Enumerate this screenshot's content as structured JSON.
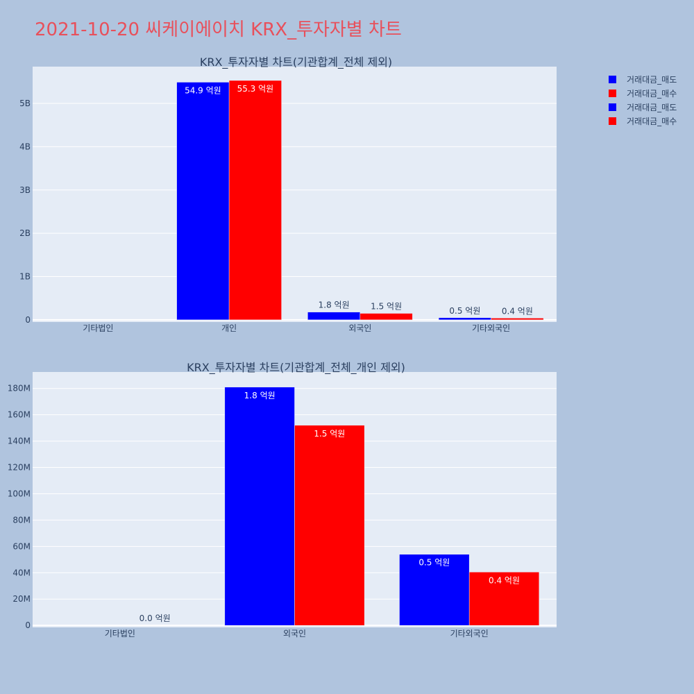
{
  "title": "2021-10-20 씨케이에이치 KRX_투자자별 차트",
  "legend": [
    {
      "name": "거래대금_매도",
      "color": "#0000ff"
    },
    {
      "name": "거래대금_매수",
      "color": "#ff0000"
    },
    {
      "name": "거래대금_매도",
      "color": "#0000ff"
    },
    {
      "name": "거래대금_매수",
      "color": "#ff0000"
    }
  ],
  "chart_data": [
    {
      "type": "bar",
      "title": "KRX_투자자별 차트(기관합계_전체 제외)",
      "categories": [
        "기타법인",
        "개인",
        "외국인",
        "기타외국인"
      ],
      "ylim": [
        -50000000,
        5850000000
      ],
      "yticks": [
        0,
        1000000000,
        2000000000,
        3000000000,
        4000000000,
        5000000000
      ],
      "ytick_labels": [
        "0",
        "1B",
        "2B",
        "3B",
        "4B",
        "5B"
      ],
      "grid": true,
      "series": [
        {
          "name": "거래대금_매도",
          "color": "#0000ff",
          "values": [
            0,
            5490000000,
            180000000,
            50000000
          ],
          "labels": [
            "",
            "54.9 억원",
            "1.8 억원",
            "0.5 억원"
          ],
          "label_inside": [
            false,
            true,
            false,
            false
          ]
        },
        {
          "name": "거래대금_매수",
          "color": "#ff0000",
          "values": [
            0,
            5530000000,
            150000000,
            40000000
          ],
          "labels": [
            "",
            "55.3 억원",
            "1.5 억원",
            "0.4 억원"
          ],
          "label_inside": [
            false,
            true,
            false,
            false
          ]
        }
      ]
    },
    {
      "type": "bar",
      "title": "KRX_투자자별 차트(기관합계_전체_개인 제외)",
      "categories": [
        "기타법인",
        "외국인",
        "기타외국인"
      ],
      "ylim": [
        -1500000,
        192500000
      ],
      "yticks": [
        0,
        20000000,
        40000000,
        60000000,
        80000000,
        100000000,
        120000000,
        140000000,
        160000000,
        180000000
      ],
      "ytick_labels": [
        "0",
        "20M",
        "40M",
        "60M",
        "80M",
        "100M",
        "120M",
        "140M",
        "160M",
        "180M"
      ],
      "grid": true,
      "series": [
        {
          "name": "거래대금_매도",
          "color": "#0000ff",
          "values": [
            0,
            181000000,
            54000000
          ],
          "labels": [
            "",
            "1.8 억원",
            "0.5 억원"
          ],
          "label_inside": [
            false,
            true,
            true
          ]
        },
        {
          "name": "거래대금_매수",
          "color": "#ff0000",
          "values": [
            0,
            152000000,
            40500000
          ],
          "labels": [
            "0.0 억원",
            "1.5 억원",
            "0.4 억원"
          ],
          "label_inside": [
            false,
            true,
            true
          ]
        }
      ]
    }
  ]
}
